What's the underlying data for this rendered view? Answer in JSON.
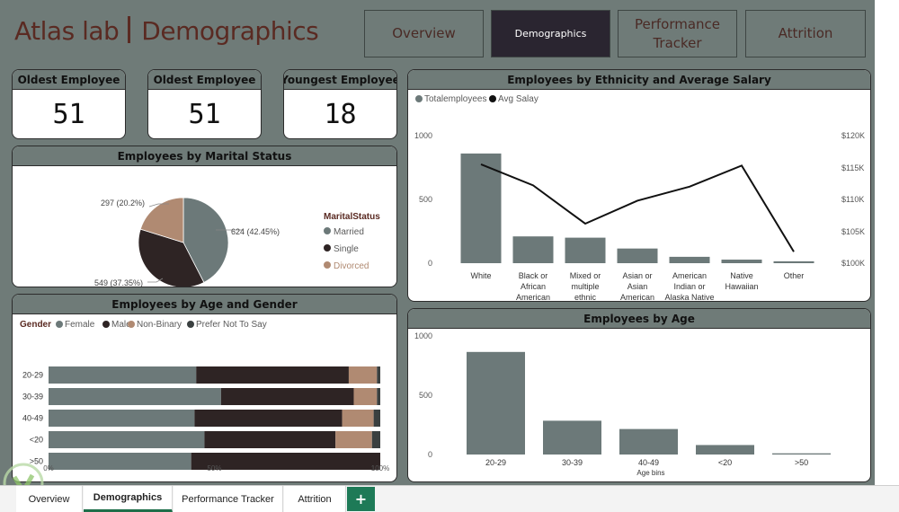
{
  "header": {
    "title_left": "Atlas lab",
    "title_right": "Demographics",
    "nav": [
      "Overview",
      "Demographics",
      "Performance Tracker",
      "Attrition"
    ],
    "active_nav": "Demographics"
  },
  "kpis": [
    {
      "label": "Oldest Employee",
      "value": "51"
    },
    {
      "label": "Oldest Employee",
      "value": "51"
    },
    {
      "label": "Youngest Employee",
      "value": "18"
    }
  ],
  "marital": {
    "title": "Employees by Marital Status",
    "legend_title": "MaritalStatus",
    "labels": {
      "married": "624 (42.45%)",
      "single": "549 (37.35%)",
      "divorced": "297 (20.2%)"
    },
    "legend": [
      "Married",
      "Single",
      "Divorced"
    ]
  },
  "ethnicity": {
    "title": "Employees by Ethnicity and Average Salary",
    "legend": [
      "Totalemployees",
      "Avg Salay"
    ],
    "left_ticks": [
      "1000",
      "500",
      "0"
    ],
    "right_ticks": [
      "$120K",
      "$115K",
      "$110K",
      "$105K",
      "$100K"
    ]
  },
  "age_gender": {
    "title": "Employees by Age and Gender",
    "legend_title": "Gender",
    "legend": [
      "Female",
      "Male",
      "Non-Binary",
      "Prefer Not To Say"
    ],
    "x_ticks": [
      "0%",
      "50%",
      "100%"
    ]
  },
  "age": {
    "title": "Employees by Age",
    "y_ticks": [
      "1000",
      "500",
      "0"
    ],
    "x_title": "Age bins"
  },
  "chart_data": [
    {
      "type": "pie",
      "title": "Employees by Marital Status",
      "legend_title": "MaritalStatus",
      "categories": [
        "Married",
        "Single",
        "Divorced"
      ],
      "values": [
        624,
        549,
        297
      ],
      "percents": [
        42.45,
        37.35,
        20.2
      ],
      "colors": [
        "#6c7979",
        "#2e2424",
        "#b08a72"
      ]
    },
    {
      "type": "bar",
      "title": "Employees by Ethnicity and Average Salary",
      "categories": [
        "White",
        "Black or African American",
        "Mixed or multiple ethnic groups",
        "Asian or Asian American",
        "American Indian or Alaska Native",
        "Native Hawaiian",
        "Other"
      ],
      "category_lines": [
        [
          "White"
        ],
        [
          "Black or",
          "African",
          "American"
        ],
        [
          "Mixed or",
          "multiple",
          "ethnic",
          "groups"
        ],
        [
          "Asian or",
          "Asian",
          "American"
        ],
        [
          "American",
          "Indian or",
          "Alaska Native"
        ],
        [
          "Native",
          "Hawaiian"
        ],
        [
          "Other"
        ]
      ],
      "series": [
        {
          "name": "Totalemployees",
          "type": "bar",
          "axis": "left",
          "values": [
            860,
            210,
            200,
            115,
            50,
            28,
            15
          ],
          "color": "#6c7979"
        },
        {
          "name": "Avg Salay",
          "type": "line",
          "axis": "right",
          "values": [
            115500,
            112200,
            106200,
            109800,
            112000,
            115300,
            101800
          ],
          "color": "#111111"
        }
      ],
      "ylim": [
        0,
        1000
      ],
      "y2lim": [
        100000,
        120000
      ]
    },
    {
      "type": "bar",
      "orientation": "horizontal",
      "stacked": "percent",
      "title": "Employees by Age and Gender",
      "categories": [
        "20-29",
        "30-39",
        "40-49",
        "<20",
        ">50"
      ],
      "series": [
        {
          "name": "Female",
          "values": [
            44.5,
            52,
            44,
            47,
            43
          ],
          "color": "#6c7979"
        },
        {
          "name": "Male",
          "values": [
            46,
            40,
            44.5,
            39.5,
            57
          ],
          "color": "#2e2424"
        },
        {
          "name": "Non-Binary",
          "values": [
            8.5,
            7,
            9.5,
            11,
            0
          ],
          "color": "#b08a72"
        },
        {
          "name": "Prefer Not To Say",
          "values": [
            1,
            1,
            2,
            2.5,
            0
          ],
          "color": "#3a4040"
        }
      ],
      "xlim": [
        0,
        100
      ]
    },
    {
      "type": "bar",
      "title": "Employees by Age",
      "categories": [
        "20-29",
        "30-39",
        "40-49",
        "<20",
        ">50"
      ],
      "values": [
        865,
        285,
        215,
        80,
        10
      ],
      "xlabel": "Age bins",
      "ylim": [
        0,
        1000
      ],
      "color": "#6c7979"
    }
  ],
  "tabs": [
    "Overview",
    "Demographics",
    "Performance Tracker",
    "Attrition"
  ],
  "active_tab": "Demographics",
  "add_tab_label": "+"
}
